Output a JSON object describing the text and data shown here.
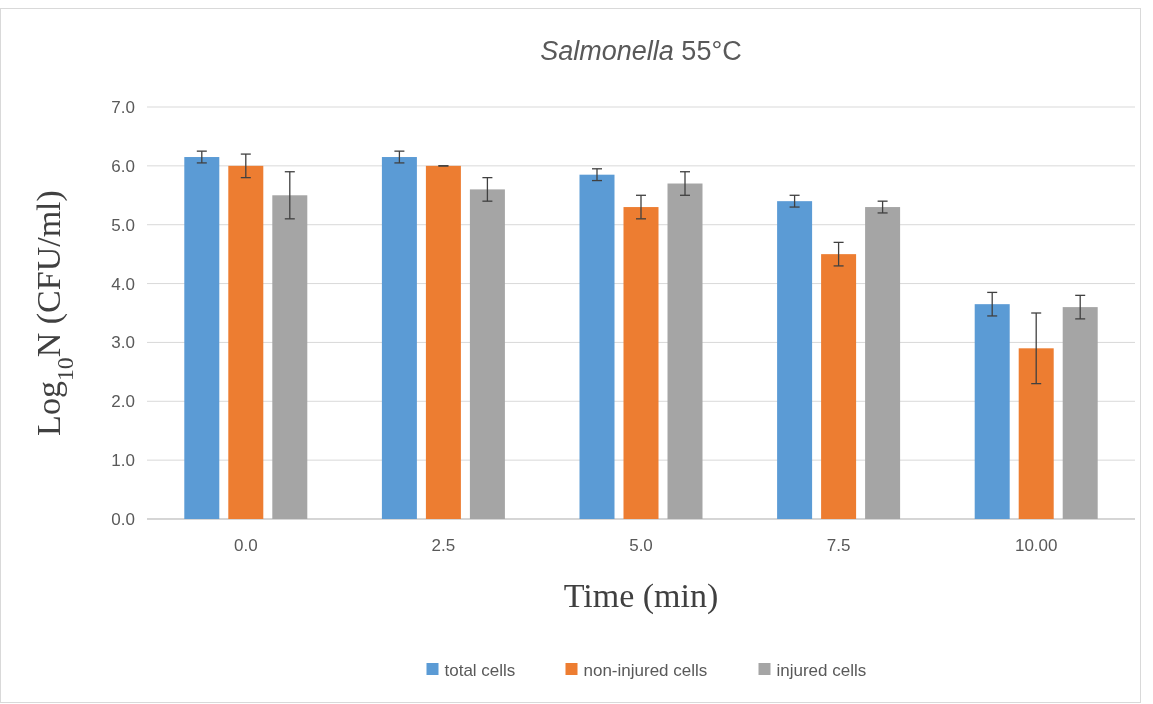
{
  "chart_data": {
    "type": "bar",
    "title": "Salmonella 55°C",
    "xlabel": "Time (min)",
    "ylabel": "Log$_{10}$N (CFU/ml)",
    "categories": [
      "0.0",
      "2.5",
      "5.0",
      "7.5",
      "10.00"
    ],
    "series": [
      {
        "name": "total cells",
        "color": "#5b9bd5",
        "values": [
          6.15,
          6.15,
          5.85,
          5.4,
          3.65
        ],
        "errors": [
          0.1,
          0.1,
          0.1,
          0.1,
          0.2
        ]
      },
      {
        "name": "non-injured cells",
        "color": "#ed7d31",
        "values": [
          6.0,
          6.0,
          5.3,
          4.5,
          2.9
        ],
        "errors": [
          0.2,
          0,
          0.2,
          0.2,
          0.6
        ]
      },
      {
        "name": "injured cells",
        "color": "#a5a5a5",
        "values": [
          5.5,
          5.6,
          5.7,
          5.3,
          3.6
        ],
        "errors": [
          0.4,
          0.2,
          0.2,
          0.1,
          0.2
        ]
      }
    ],
    "ylim": [
      0,
      7
    ],
    "yticks": [
      {
        "value": 0,
        "label": "0.0"
      },
      {
        "value": 1,
        "label": "1.0"
      },
      {
        "value": 2,
        "label": "2.0"
      },
      {
        "value": 3,
        "label": "3.0"
      },
      {
        "value": 4,
        "label": "4.0"
      },
      {
        "value": 5,
        "label": "5.0"
      },
      {
        "value": 6,
        "label": "6.0"
      },
      {
        "value": 7,
        "label": "7.0"
      }
    ],
    "grid": "y",
    "legend": "bottom"
  }
}
